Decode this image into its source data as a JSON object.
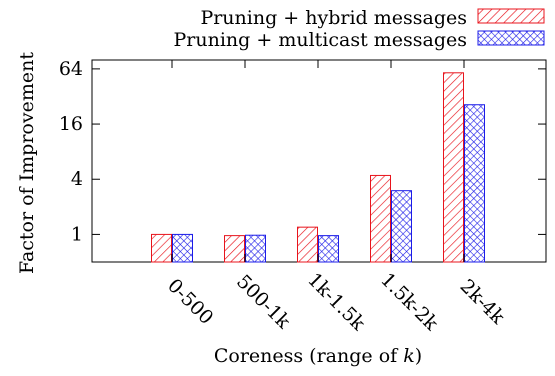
{
  "chart_data": {
    "type": "bar",
    "title": "",
    "xlabel": "Coreness (range of k)",
    "xlabel_prefix": "Coreness (range of ",
    "xlabel_var": "k",
    "xlabel_suffix": ")",
    "ylabel": "Factor of Improvement",
    "y_scale": "log2",
    "ylim": [
      0.5,
      80
    ],
    "yticks": [
      1,
      4,
      16,
      64
    ],
    "ytick_labels": [
      "1",
      "4",
      "16",
      "64"
    ],
    "categories": [
      "0-500",
      "500-1k",
      "1k-1.5k",
      "1.5k-2k",
      "2k-4k"
    ],
    "series": [
      {
        "name": "Pruning + hybrid messages",
        "values": [
          1.0,
          0.97,
          1.2,
          4.4,
          58
        ],
        "color": "#e8141c",
        "pattern": "diagonal-hatch"
      },
      {
        "name": "Pruning + multicast messages",
        "values": [
          1.0,
          0.98,
          0.97,
          3.0,
          26
        ],
        "color": "#1c1ce8",
        "pattern": "crosshatch"
      }
    ],
    "legend_position": "top-right",
    "grid": false
  }
}
